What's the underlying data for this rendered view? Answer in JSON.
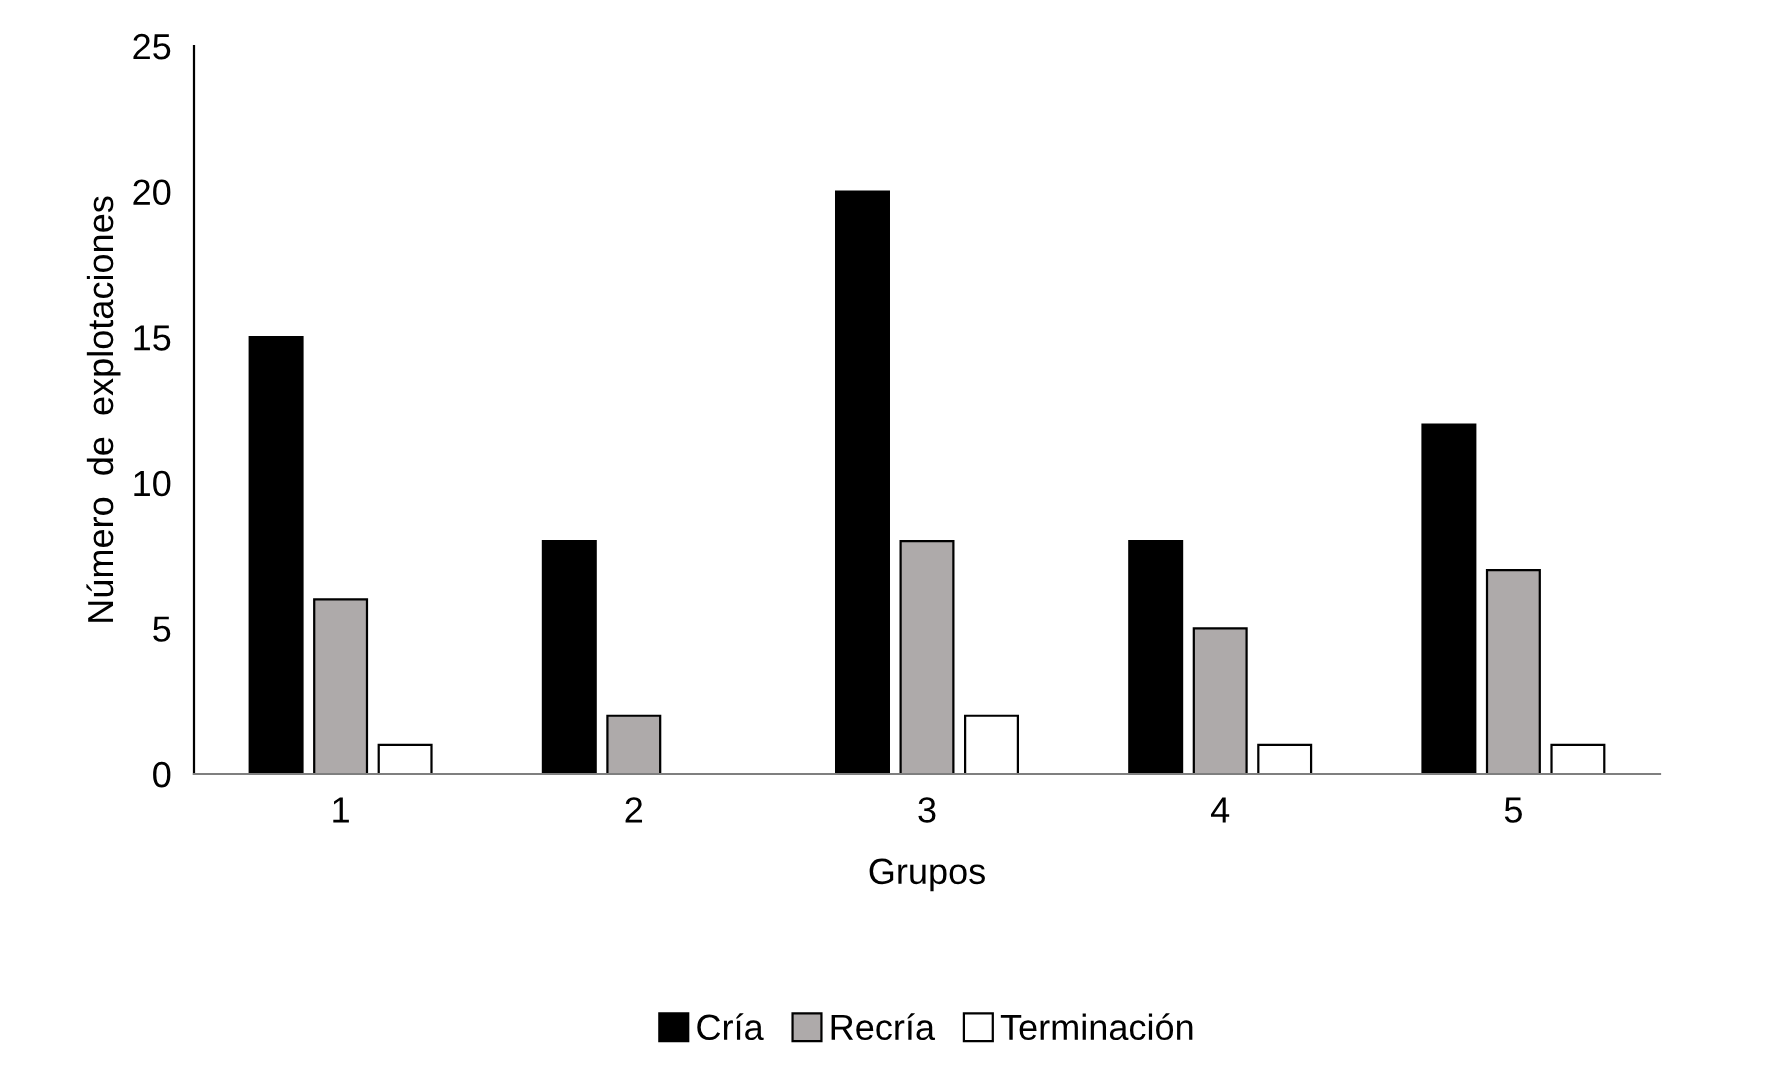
{
  "chart_data": {
    "type": "bar",
    "xlabel": "Grupos",
    "ylabel": "Número  de  explotaciones",
    "categories": [
      "1",
      "2",
      "3",
      "4",
      "5"
    ],
    "series": [
      {
        "name": "Cría",
        "color": "#000000",
        "values": [
          15,
          8,
          20,
          8,
          12
        ]
      },
      {
        "name": "Recría",
        "color": "#aeaaaa",
        "values": [
          6,
          2,
          8,
          5,
          7
        ]
      },
      {
        "name": "Terminación",
        "color": "#ffffff",
        "values": [
          1,
          0,
          2,
          1,
          1
        ]
      }
    ],
    "ylim": [
      0,
      25
    ],
    "yticks": [
      0,
      5,
      10,
      15,
      20,
      25
    ],
    "grid": false,
    "legend": "bottom"
  }
}
